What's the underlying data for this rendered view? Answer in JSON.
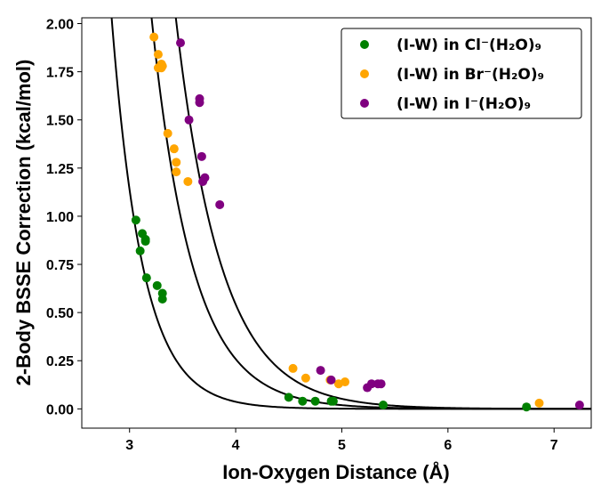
{
  "chart_data": {
    "type": "scatter",
    "xlabel": "Ion-Oxygen Distance (Å)",
    "ylabel": "2-Body BSSE Correction (kcal/mol)",
    "xlim": [
      2.55,
      7.35
    ],
    "ylim": [
      -0.1,
      2.03
    ],
    "xticks": [
      "3",
      "4",
      "5",
      "6",
      "7"
    ],
    "yticks": [
      "0.00",
      "0.25",
      "0.50",
      "0.75",
      "1.00",
      "1.25",
      "1.50",
      "1.75",
      "2.00"
    ],
    "grid": false,
    "legend_position": "top-right",
    "series": [
      {
        "name": "(I-W) in Cl⁻(H₂O)₉",
        "color": "#008000",
        "curve": {
          "a": 33500,
          "b": 3.43
        },
        "points": [
          [
            3.06,
            0.98
          ],
          [
            3.1,
            0.82
          ],
          [
            3.12,
            0.91
          ],
          [
            3.15,
            0.88
          ],
          [
            3.15,
            0.87
          ],
          [
            3.16,
            0.68
          ],
          [
            3.26,
            0.64
          ],
          [
            3.31,
            0.6
          ],
          [
            3.31,
            0.57
          ],
          [
            4.5,
            0.06
          ],
          [
            4.63,
            0.04
          ],
          [
            4.75,
            0.04
          ],
          [
            4.9,
            0.04
          ],
          [
            4.92,
            0.04
          ],
          [
            5.39,
            0.02
          ],
          [
            6.74,
            0.01
          ]
        ]
      },
      {
        "name": "(I-W) in Br⁻(H₂O)₉",
        "color": "#FFA500",
        "curve": {
          "a": 8500,
          "b": 2.6
        },
        "points": [
          [
            3.23,
            1.93
          ],
          [
            3.27,
            1.84
          ],
          [
            3.27,
            1.77
          ],
          [
            3.3,
            1.79
          ],
          [
            3.3,
            1.77
          ],
          [
            3.31,
            1.78
          ],
          [
            3.36,
            1.43
          ],
          [
            3.42,
            1.35
          ],
          [
            3.44,
            1.28
          ],
          [
            3.44,
            1.23
          ],
          [
            3.55,
            1.18
          ],
          [
            4.54,
            0.21
          ],
          [
            4.66,
            0.16
          ],
          [
            4.89,
            0.15
          ],
          [
            4.97,
            0.13
          ],
          [
            5.03,
            0.14
          ],
          [
            6.86,
            0.03
          ]
        ]
      },
      {
        "name": "(I-W) in I⁻(H₂O)₉",
        "color": "#800080",
        "curve": {
          "a": 6300,
          "b": 2.34
        },
        "points": [
          [
            3.48,
            1.9
          ],
          [
            3.56,
            1.5
          ],
          [
            3.66,
            1.61
          ],
          [
            3.66,
            1.59
          ],
          [
            3.68,
            1.31
          ],
          [
            3.69,
            1.18
          ],
          [
            3.71,
            1.2
          ],
          [
            3.85,
            1.06
          ],
          [
            4.8,
            0.2
          ],
          [
            4.9,
            0.15
          ],
          [
            5.24,
            0.11
          ],
          [
            5.28,
            0.13
          ],
          [
            5.34,
            0.13
          ],
          [
            5.37,
            0.13
          ],
          [
            7.24,
            0.02
          ]
        ]
      }
    ]
  }
}
